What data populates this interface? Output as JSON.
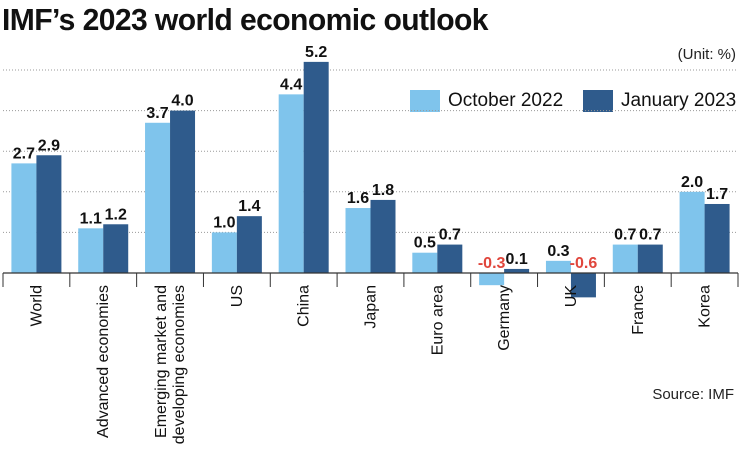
{
  "title": "IMF’s 2023 world economic outlook",
  "unit": "(Unit: %)",
  "source": "Source: IMF",
  "colors": {
    "october": "#7fc4ec",
    "january": "#2f5b8c",
    "negative_label": "#e0463c",
    "grid": "#9a9a9a"
  },
  "chart_data": {
    "type": "bar",
    "title": "IMF’s 2023 world economic outlook",
    "xlabel": "",
    "ylabel": "",
    "ylim": [
      -0.7,
      5.6
    ],
    "grid": true,
    "legend_position": "top-right",
    "categories": [
      [
        "World"
      ],
      [
        "Advanced economies"
      ],
      [
        "Emerging market and",
        "developing economies"
      ],
      [
        "US"
      ],
      [
        "China"
      ],
      [
        "Japan"
      ],
      [
        "Euro area"
      ],
      [
        "Germany"
      ],
      [
        "UK"
      ],
      [
        "France"
      ],
      [
        "Korea"
      ]
    ],
    "series": [
      {
        "name": "October 2022",
        "values": [
          2.7,
          1.1,
          3.7,
          1.0,
          4.4,
          1.6,
          0.5,
          -0.3,
          0.3,
          0.7,
          2.0
        ]
      },
      {
        "name": "January 2023",
        "values": [
          2.9,
          1.2,
          4.0,
          1.4,
          5.2,
          1.8,
          0.7,
          0.1,
          -0.6,
          0.7,
          1.7
        ]
      }
    ]
  }
}
